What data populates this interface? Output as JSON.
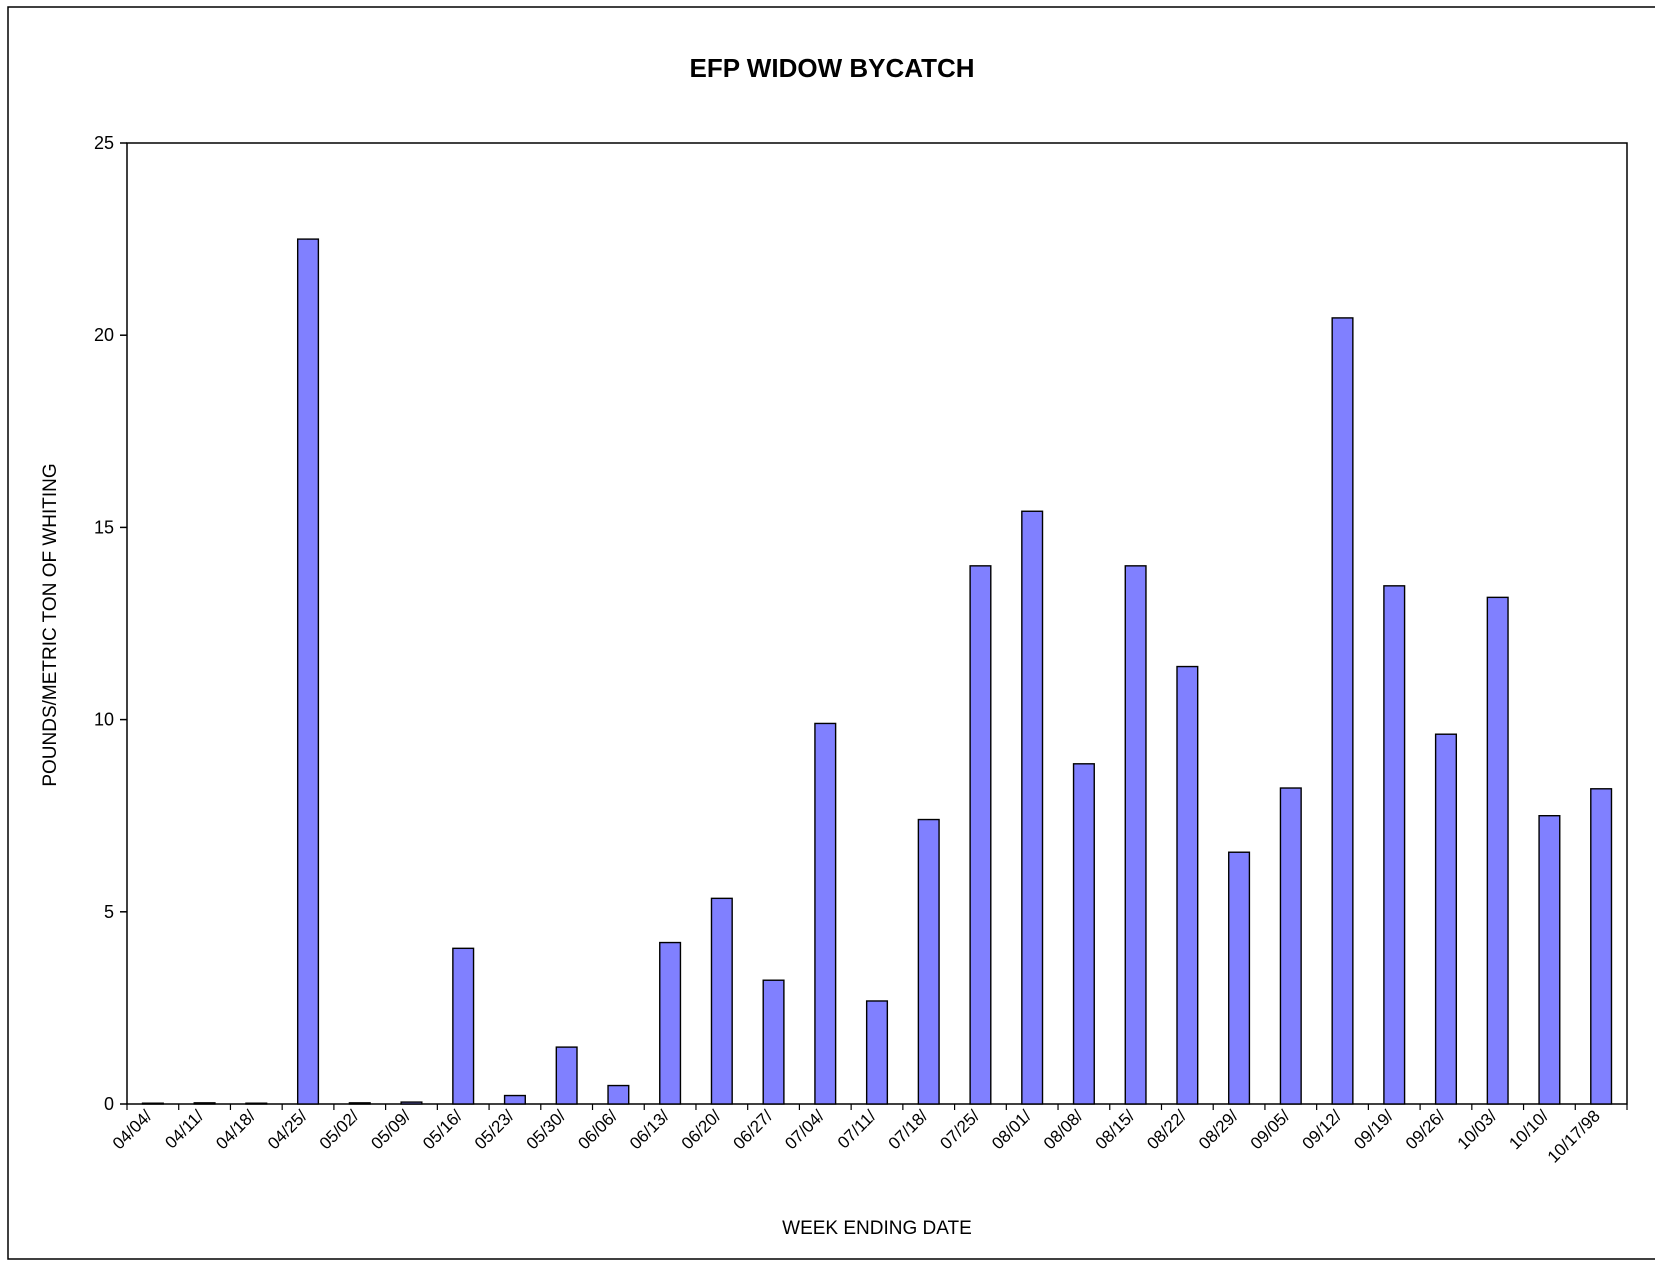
{
  "chart_data": {
    "type": "bar",
    "title": "EFP WIDOW BYCATCH",
    "xlabel": "WEEK ENDING DATE",
    "ylabel": "POUNDS/METRIC TON OF WHITING",
    "ylim": [
      0,
      25
    ],
    "yticks": [
      0,
      5,
      10,
      15,
      20,
      25
    ],
    "grid": false,
    "legend": "none",
    "bar_color": "#8080ff",
    "bar_edge_color": "#000000",
    "categories": [
      "04/04/",
      "04/11/",
      "04/18/",
      "04/25/",
      "05/02/",
      "05/09/",
      "05/16/",
      "05/23/",
      "05/30/",
      "06/06/",
      "06/13/",
      "06/20/",
      "06/27/",
      "07/04/",
      "07/11/",
      "07/18/",
      "07/25/",
      "08/01/",
      "08/08/",
      "08/15/",
      "08/22/",
      "08/29/",
      "09/05/",
      "09/12/",
      "09/19/",
      "09/26/",
      "10/03/",
      "10/10/",
      "10/17/98"
    ],
    "values": [
      0,
      0.03,
      0,
      22.5,
      0.03,
      0.05,
      4.05,
      0.22,
      1.48,
      0.48,
      4.2,
      5.35,
      3.22,
      9.9,
      2.68,
      7.4,
      14,
      15.42,
      8.85,
      14,
      11.38,
      6.55,
      8.22,
      20.45,
      13.48,
      9.62,
      13.18,
      7.5,
      8.2
    ]
  }
}
